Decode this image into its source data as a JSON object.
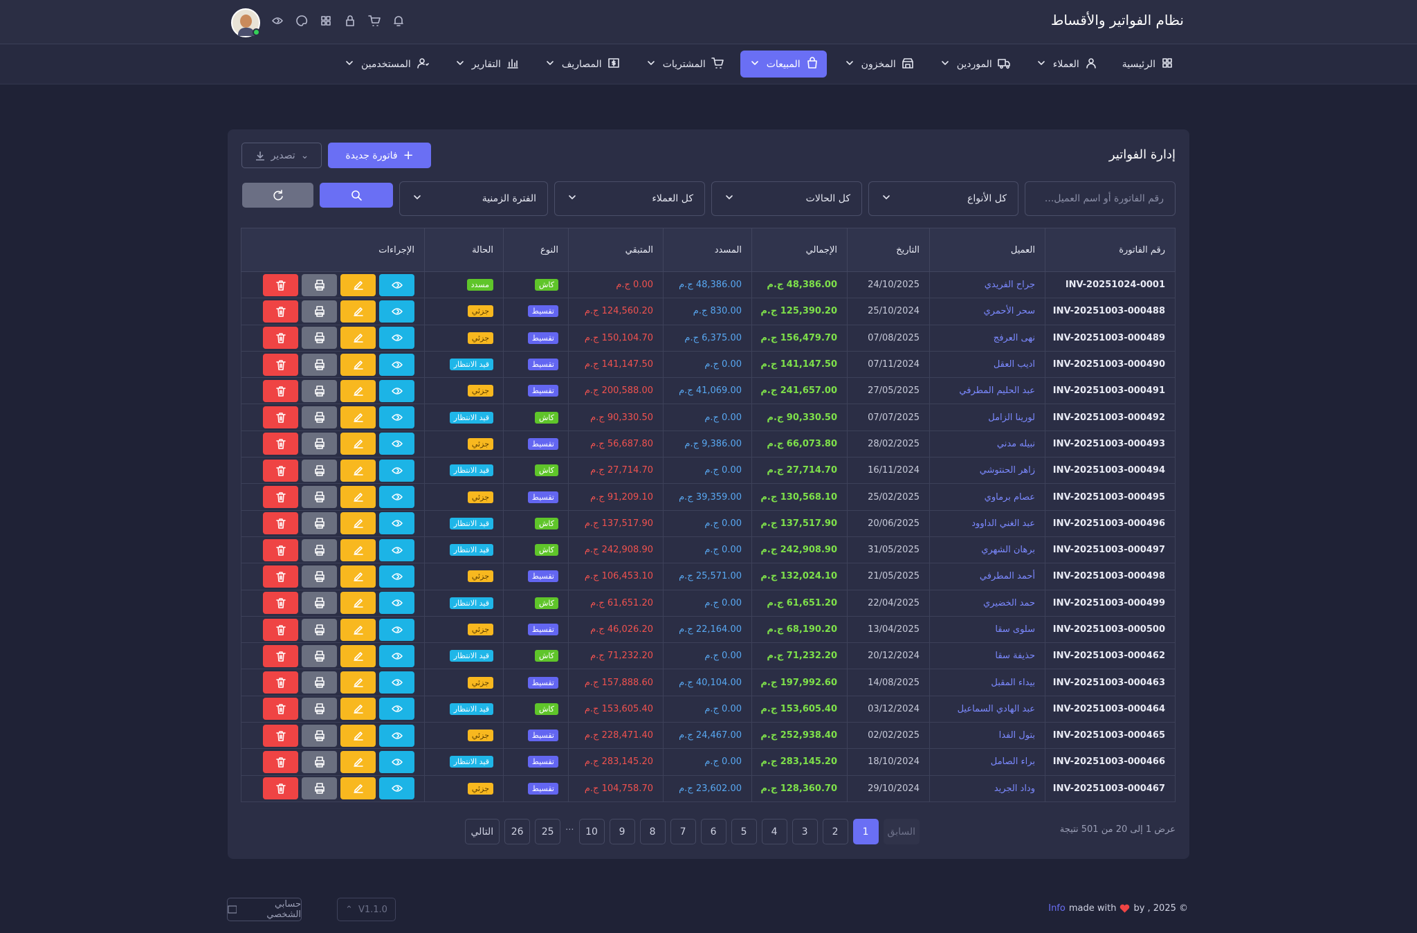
{
  "header": {
    "title": "نظام الفواتير والأقساط"
  },
  "nav": {
    "items": [
      "الرئيسية",
      "العملاء",
      "الموردين",
      "المخزون",
      "المبيعات",
      "المشتريات",
      "المصاريف",
      "التقارير",
      "المستخدمين"
    ]
  },
  "card": {
    "title": "إدارة الفواتير",
    "new_button": "فاتورة جديدة",
    "export_button": "تصدير",
    "search_placeholder": "رقم الفاتورة أو اسم العميل...",
    "filters": [
      "كل الأنواع",
      "كل الحالات",
      "كل العملاء",
      "الفترة الزمنية"
    ]
  },
  "table": {
    "columns": [
      "رقم الفاتورة",
      "العميل",
      "التاريخ",
      "الإجمالي",
      "المسدد",
      "المتبقي",
      "النوع",
      "الحالة",
      "الإجراءات"
    ],
    "rows": [
      [
        "INV-20251024-0001",
        "جراح الفريدي",
        "24/10/2025",
        "48,386.00 ج.م",
        "48,386.00 ج.م",
        "0.00 ج.م",
        "كاش",
        "مسدد"
      ],
      [
        "INV-20251003-000488",
        "سحر الأحمري",
        "25/10/2024",
        "125,390.20 ج.م",
        "830.00 ج.م",
        "124,560.20 ج.م",
        "تقسيط",
        "جزئي"
      ],
      [
        "INV-20251003-000489",
        "نهى العرفج",
        "07/08/2025",
        "156,479.70 ج.م",
        "6,375.00 ج.م",
        "150,104.70 ج.م",
        "تقسيط",
        "جزئي"
      ],
      [
        "INV-20251003-000490",
        "اديب العقل",
        "07/11/2024",
        "141,147.50 ج.م",
        "0.00 ج.م",
        "141,147.50 ج.م",
        "تقسيط",
        "قيد الانتظار"
      ],
      [
        "INV-20251003-000491",
        "عبد الحليم المطرفي",
        "27/05/2025",
        "241,657.00 ج.م",
        "41,069.00 ج.م",
        "200,588.00 ج.م",
        "تقسيط",
        "جزئي"
      ],
      [
        "INV-20251003-000492",
        "لورينا الزامل",
        "07/07/2025",
        "90,330.50 ج.م",
        "0.00 ج.م",
        "90,330.50 ج.م",
        "كاش",
        "قيد الانتظار"
      ],
      [
        "INV-20251003-000493",
        "نبيله مدني",
        "28/02/2025",
        "66,073.80 ج.م",
        "9,386.00 ج.م",
        "56,687.80 ج.م",
        "تقسيط",
        "جزئي"
      ],
      [
        "INV-20251003-000494",
        "زاهر الحنتوشي",
        "16/11/2024",
        "27,714.70 ج.م",
        "0.00 ج.م",
        "27,714.70 ج.م",
        "كاش",
        "قيد الانتظار"
      ],
      [
        "INV-20251003-000495",
        "عصام برماوي",
        "25/02/2025",
        "130,568.10 ج.م",
        "39,359.00 ج.م",
        "91,209.10 ج.م",
        "تقسيط",
        "جزئي"
      ],
      [
        "INV-20251003-000496",
        "عبد الغني الداوود",
        "20/06/2025",
        "137,517.90 ج.م",
        "0.00 ج.م",
        "137,517.90 ج.م",
        "كاش",
        "قيد الانتظار"
      ],
      [
        "INV-20251003-000497",
        "برهان الشهري",
        "31/05/2025",
        "242,908.90 ج.م",
        "0.00 ج.م",
        "242,908.90 ج.م",
        "كاش",
        "قيد الانتظار"
      ],
      [
        "INV-20251003-000498",
        "أحمد المطرفي",
        "21/05/2025",
        "132,024.10 ج.م",
        "25,571.00 ج.م",
        "106,453.10 ج.م",
        "تقسيط",
        "جزئي"
      ],
      [
        "INV-20251003-000499",
        "حمد الخضيري",
        "22/04/2025",
        "61,651.20 ج.م",
        "0.00 ج.م",
        "61,651.20 ج.م",
        "كاش",
        "قيد الانتظار"
      ],
      [
        "INV-20251003-000500",
        "سلوى سقا",
        "13/04/2025",
        "68,190.20 ج.م",
        "22,164.00 ج.م",
        "46,026.20 ج.م",
        "تقسيط",
        "جزئي"
      ],
      [
        "INV-20251003-000462",
        "حذيفة سقا",
        "20/12/2024",
        "71,232.20 ج.م",
        "0.00 ج.م",
        "71,232.20 ج.م",
        "كاش",
        "قيد الانتظار"
      ],
      [
        "INV-20251003-000463",
        "بيداء المقبل",
        "14/08/2025",
        "197,992.60 ج.م",
        "40,104.00 ج.م",
        "157,888.60 ج.م",
        "تقسيط",
        "جزئي"
      ],
      [
        "INV-20251003-000464",
        "عبد الهادي السماعيل",
        "03/12/2024",
        "153,605.40 ج.م",
        "0.00 ج.م",
        "153,605.40 ج.م",
        "كاش",
        "قيد الانتظار"
      ],
      [
        "INV-20251003-000465",
        "بتول الفدا",
        "02/02/2025",
        "252,938.40 ج.م",
        "24,467.00 ج.م",
        "228,471.40 ج.م",
        "تقسيط",
        "جزئي"
      ],
      [
        "INV-20251003-000466",
        "براء الصامل",
        "18/10/2024",
        "283,145.20 ج.م",
        "0.00 ج.م",
        "283,145.20 ج.م",
        "تقسيط",
        "قيد الانتظار"
      ],
      [
        "INV-20251003-000467",
        "وداد الجريد",
        "29/10/2024",
        "128,360.70 ج.م",
        "23,602.00 ج.م",
        "104,758.70 ج.م",
        "تقسيط",
        "جزئي"
      ]
    ]
  },
  "pagination": {
    "summary": "عرض 1 إلى 20 من 501 نتيجة",
    "prev": "السابق",
    "next": "التالي",
    "pages": [
      "1",
      "2",
      "3",
      "4",
      "5",
      "6",
      "7",
      "8",
      "9",
      "10",
      "...",
      "25",
      "26"
    ]
  },
  "footer": {
    "link": "Info",
    "made_with": "made with",
    "by": "by , 2025 ©",
    "account": "حسابي الشخصي",
    "version": "V1.1.0"
  }
}
